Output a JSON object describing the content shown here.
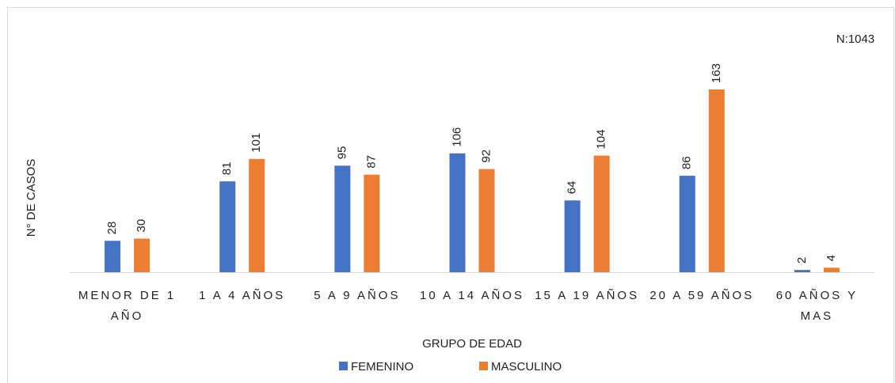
{
  "chart_data": {
    "type": "bar",
    "y_label": "N° DE CASOS",
    "x_label": "GRUPO DE EDAD",
    "annotation": "N:1043",
    "categories": [
      "MENOR DE 1 AÑO",
      "1 A 4 AÑOS",
      "5 A 9 AÑOS",
      "10 A 14 AÑOS",
      "15 A 19 AÑOS",
      "20 A 59 AÑOS",
      "60 AÑOS Y MAS"
    ],
    "series": [
      {
        "name": "FEMENINO",
        "color": "#4472c4",
        "values": [
          28,
          81,
          95,
          106,
          64,
          86,
          2
        ]
      },
      {
        "name": "MASCULINO",
        "color": "#ed7d31",
        "values": [
          30,
          101,
          87,
          92,
          104,
          163,
          4
        ]
      }
    ],
    "legend": "bottom"
  }
}
